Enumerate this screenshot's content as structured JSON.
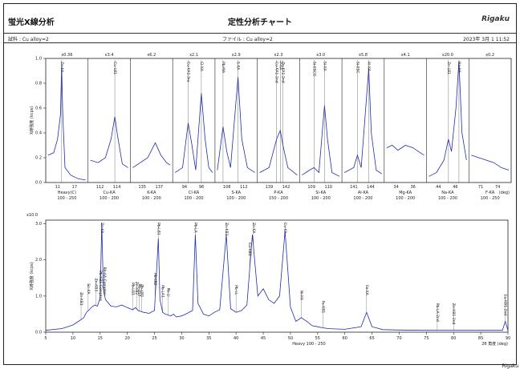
{
  "header": {
    "title_left": "蛍光X線分析",
    "title_center": "定性分析チャート",
    "brand": "Rigaku",
    "sample": "試料 : Cu alloy=2",
    "file": "ファイル : Cu alloy=2",
    "datetime": "2023年 3月 1 11:52"
  },
  "footer_stamp": "Rigaku",
  "colors": {
    "trace": "#1f2bb0",
    "frame": "#222222",
    "grid": "#555555"
  },
  "chart_data": [
    {
      "type": "line",
      "title": "",
      "ylabel": "X線強度 (kcps)",
      "ylim": [
        0,
        1.0
      ],
      "yticks": [
        0,
        0.2,
        0.4,
        0.6,
        0.8,
        1.0
      ],
      "ytick_labels": [
        "0.0",
        "0.2",
        "0.4",
        "0.6",
        "0.8",
        "1.0"
      ],
      "units_label": "(deg)",
      "panels": [
        {
          "scale": "x0.36",
          "ticks": [
            "11",
            "17"
          ],
          "axis": "Heavy(C)",
          "range": "100 - 250",
          "points": [
            [
              0,
              0.22
            ],
            [
              0.15,
              0.24
            ],
            [
              0.25,
              0.35
            ],
            [
              0.33,
              0.55
            ],
            [
              0.36,
              0.95
            ],
            [
              0.39,
              0.55
            ],
            [
              0.45,
              0.12
            ],
            [
              0.6,
              0.06
            ],
            [
              0.8,
              0.03
            ],
            [
              1,
              0.02
            ]
          ],
          "peaks": [
            {
              "pos": 0.36,
              "label": "Zn-KA"
            }
          ]
        },
        {
          "scale": "x3.4",
          "ticks": [
            "112",
            "114"
          ],
          "axis": "Cu-KA",
          "range": "100 - 200",
          "points": [
            [
              0,
              0.18
            ],
            [
              0.2,
              0.16
            ],
            [
              0.4,
              0.2
            ],
            [
              0.55,
              0.35
            ],
            [
              0.65,
              0.53
            ],
            [
              0.72,
              0.38
            ],
            [
              0.85,
              0.15
            ],
            [
              1,
              0.12
            ]
          ],
          "peaks": [
            {
              "pos": 0.65,
              "label": "Cu-LB1"
            }
          ]
        },
        {
          "scale": "x6.2",
          "ticks": [
            "135",
            "137"
          ],
          "axis": "K-KA",
          "range": "100 - 200",
          "points": [
            [
              0,
              0.12
            ],
            [
              0.2,
              0.16
            ],
            [
              0.4,
              0.2
            ],
            [
              0.6,
              0.32
            ],
            [
              0.75,
              0.22
            ],
            [
              0.9,
              0.16
            ],
            [
              1,
              0.14
            ]
          ],
          "peaks": []
        },
        {
          "scale": "x2.1",
          "ticks": [
            "94",
            "96"
          ],
          "axis": "Cl-KA",
          "range": "100 - 200",
          "points": [
            [
              0,
              0.08
            ],
            [
              0.2,
              0.12
            ],
            [
              0.35,
              0.48
            ],
            [
              0.45,
              0.3
            ],
            [
              0.55,
              0.1
            ],
            [
              0.7,
              0.72
            ],
            [
              0.8,
              0.35
            ],
            [
              0.9,
              0.12
            ],
            [
              1,
              0.08
            ]
          ],
          "peaks": [
            {
              "pos": 0.35,
              "label": "Cu-KA1-3ra"
            },
            {
              "pos": 0.7,
              "label": "Cl-KA"
            }
          ]
        },
        {
          "scale": "x2.9",
          "ticks": [
            "108",
            "112"
          ],
          "axis": "S-KA",
          "range": "100 - 200",
          "points": [
            [
              0,
              0.1
            ],
            [
              0.15,
              0.45
            ],
            [
              0.25,
              0.25
            ],
            [
              0.35,
              0.12
            ],
            [
              0.55,
              0.85
            ],
            [
              0.65,
              0.35
            ],
            [
              0.8,
              0.12
            ],
            [
              1,
              0.08
            ]
          ],
          "peaks": [
            {
              "pos": 0.15,
              "label": "Pb-MA"
            },
            {
              "pos": 0.55,
              "label": "S-KA"
            }
          ]
        },
        {
          "scale": "x2.3",
          "ticks": [
            "139",
            "142"
          ],
          "axis": "P-KA",
          "range": "150 - 200",
          "points": [
            [
              0,
              0.08
            ],
            [
              0.25,
              0.12
            ],
            [
              0.45,
              0.35
            ],
            [
              0.55,
              0.42
            ],
            [
              0.62,
              0.3
            ],
            [
              0.75,
              0.12
            ],
            [
              1,
              0.06
            ]
          ],
          "peaks": [
            {
              "pos": 0.45,
              "label": "Cu-KA1-2nd"
            },
            {
              "pos": 0.55,
              "label": "P-KA"
            },
            {
              "pos": 0.62,
              "label": "Zn-KA1-2nd"
            }
          ]
        },
        {
          "scale": "x3.0",
          "ticks": [
            "109",
            "110"
          ],
          "axis": "Si-KA",
          "range": "100 - 200",
          "points": [
            [
              0,
              0.06
            ],
            [
              0.2,
              0.1
            ],
            [
              0.32,
              0.12
            ],
            [
              0.45,
              0.08
            ],
            [
              0.6,
              0.62
            ],
            [
              0.68,
              0.35
            ],
            [
              0.8,
              0.08
            ],
            [
              1,
              0.05
            ]
          ],
          "peaks": [
            {
              "pos": 0.32,
              "label": "Si-ESCO"
            },
            {
              "pos": 0.6,
              "label": "Si-KA"
            }
          ]
        },
        {
          "scale": "x5.8",
          "ticks": [
            "141",
            "144"
          ],
          "axis": "Al-KA",
          "range": "100 - 200",
          "points": [
            [
              0,
              0.08
            ],
            [
              0.25,
              0.12
            ],
            [
              0.35,
              0.22
            ],
            [
              0.45,
              0.12
            ],
            [
              0.65,
              0.92
            ],
            [
              0.72,
              0.4
            ],
            [
              0.85,
              0.1
            ],
            [
              1,
              0.07
            ]
          ],
          "peaks": [
            {
              "pos": 0.35,
              "label": "Si-ESC"
            },
            {
              "pos": 0.65,
              "label": "Al-KA"
            }
          ]
        },
        {
          "scale": "x4.1",
          "ticks": [
            "34",
            "36"
          ],
          "axis": "Mg-KA",
          "range": "100 - 200",
          "points": [
            [
              0,
              0.28
            ],
            [
              0.15,
              0.3
            ],
            [
              0.3,
              0.26
            ],
            [
              0.5,
              0.3
            ],
            [
              0.7,
              0.28
            ],
            [
              0.85,
              0.25
            ],
            [
              1,
              0.22
            ]
          ],
          "peaks": []
        },
        {
          "scale": "x20.0",
          "ticks": [
            "44",
            "46"
          ],
          "axis": "Na-KA",
          "range": "100 - 200",
          "points": [
            [
              0,
              0.05
            ],
            [
              0.2,
              0.08
            ],
            [
              0.4,
              0.18
            ],
            [
              0.52,
              0.35
            ],
            [
              0.6,
              0.25
            ],
            [
              0.72,
              0.6
            ],
            [
              0.8,
              0.98
            ],
            [
              0.88,
              0.4
            ],
            [
              1,
              0.18
            ]
          ],
          "peaks": [
            {
              "pos": 0.52,
              "label": "Zn-LB1"
            },
            {
              "pos": 0.8,
              "label": "Na-KA"
            }
          ]
        },
        {
          "scale": "x0.2",
          "ticks": [
            "71",
            "74"
          ],
          "axis": "F-KA",
          "range": "100 - 250",
          "points": [
            [
              0,
              0.22
            ],
            [
              0.2,
              0.2
            ],
            [
              0.4,
              0.18
            ],
            [
              0.6,
              0.16
            ],
            [
              0.8,
              0.12
            ],
            [
              1,
              0.1
            ]
          ],
          "peaks": []
        }
      ]
    },
    {
      "type": "line",
      "title": "",
      "ylabel": "X線強度 (kcps)",
      "scale": "x10.0",
      "xlim": [
        5,
        90
      ],
      "ylim": [
        0,
        3.1
      ],
      "xticks": [
        5,
        10,
        15,
        20,
        25,
        30,
        35,
        40,
        45,
        50,
        55,
        60,
        65,
        70,
        75,
        80,
        85,
        90
      ],
      "yticks": [
        0,
        1.0,
        2.0,
        3.0
      ],
      "ytick_labels": [
        "0.0",
        "1.0",
        "2.0",
        "3.0"
      ],
      "xlabel": "Heavy 100 - 250",
      "xlabel_right": "2θ 角度 (deg)",
      "points": [
        [
          5,
          0.05
        ],
        [
          8,
          0.1
        ],
        [
          10,
          0.2
        ],
        [
          11,
          0.3
        ],
        [
          12,
          0.4
        ],
        [
          12.5,
          0.55
        ],
        [
          13,
          0.62
        ],
        [
          13.5,
          0.7
        ],
        [
          14,
          0.75
        ],
        [
          14.5,
          0.72
        ],
        [
          15,
          0.95
        ],
        [
          15.3,
          3.0
        ],
        [
          15.6,
          1.2
        ],
        [
          16,
          0.9
        ],
        [
          17,
          0.72
        ],
        [
          18,
          0.7
        ],
        [
          19,
          0.75
        ],
        [
          20,
          0.68
        ],
        [
          21,
          0.62
        ],
        [
          21.5,
          0.68
        ],
        [
          22,
          0.6
        ],
        [
          23,
          0.55
        ],
        [
          24,
          0.52
        ],
        [
          25,
          0.6
        ],
        [
          25.7,
          2.6
        ],
        [
          26,
          0.9
        ],
        [
          26.5,
          0.55
        ],
        [
          27,
          0.5
        ],
        [
          28,
          0.45
        ],
        [
          28.5,
          0.5
        ],
        [
          29,
          0.42
        ],
        [
          30,
          0.45
        ],
        [
          31,
          0.52
        ],
        [
          32,
          0.6
        ],
        [
          32.5,
          2.7
        ],
        [
          33,
          0.8
        ],
        [
          34,
          0.5
        ],
        [
          35,
          0.45
        ],
        [
          36,
          0.55
        ],
        [
          37,
          0.62
        ],
        [
          38.2,
          2.7
        ],
        [
          39,
          0.65
        ],
        [
          40,
          0.55
        ],
        [
          41,
          0.6
        ],
        [
          42,
          0.75
        ],
        [
          43,
          2.7
        ],
        [
          44,
          1.0
        ],
        [
          45,
          1.2
        ],
        [
          46,
          0.9
        ],
        [
          47,
          0.8
        ],
        [
          48,
          1.0
        ],
        [
          49,
          2.8
        ],
        [
          50,
          0.7
        ],
        [
          51,
          0.3
        ],
        [
          52,
          0.4
        ],
        [
          53,
          0.3
        ],
        [
          54,
          0.18
        ],
        [
          55,
          0.15
        ],
        [
          56,
          0.12
        ],
        [
          57,
          0.1
        ],
        [
          58,
          0.09
        ],
        [
          60,
          0.08
        ],
        [
          63,
          0.15
        ],
        [
          64,
          0.55
        ],
        [
          65,
          0.15
        ],
        [
          67,
          0.07
        ],
        [
          70,
          0.06
        ],
        [
          75,
          0.05
        ],
        [
          80,
          0.05
        ],
        [
          85,
          0.05
        ],
        [
          89,
          0.05
        ],
        [
          89.5,
          0.3
        ],
        [
          90,
          0.05
        ]
      ],
      "peaks": [
        {
          "x": 11.5,
          "label": "Zn-KB1"
        },
        {
          "x": 12.8,
          "label": "Sn-KA"
        },
        {
          "x": 14.2,
          "label": "Zn-KB3"
        },
        {
          "x": 15.0,
          "label": "Pb-KB1-Compton"
        },
        {
          "x": 15.3,
          "label": "Zn-KA"
        },
        {
          "x": 15.8,
          "label": "Rh-KA-Compton"
        },
        {
          "x": 21.0,
          "label": "Pb-LG1"
        },
        {
          "x": 21.7,
          "label": "Zn-KB2"
        },
        {
          "x": 22.2,
          "label": "Pb-LG3"
        },
        {
          "x": 22.6,
          "label": "Pb-LB3"
        },
        {
          "x": 25.7,
          "label": "Pb-LB1"
        },
        {
          "x": 25.1,
          "label": "Pb-LB2"
        },
        {
          "x": 26.5,
          "label": "Pb-LA1"
        },
        {
          "x": 27.5,
          "label": "Pb-Ll"
        },
        {
          "x": 32.5,
          "label": "Pb-LA"
        },
        {
          "x": 38.2,
          "label": "Zn-KB1"
        },
        {
          "x": 40.0,
          "label": "Pb-LL"
        },
        {
          "x": 42.5,
          "label": "Cu-KB1"
        },
        {
          "x": 43.2,
          "label": "Zn-KA"
        },
        {
          "x": 49.0,
          "label": "Cu-KA"
        },
        {
          "x": 52.0,
          "label": "Ni-KA"
        },
        {
          "x": 56.0,
          "label": "Fe-KB1"
        },
        {
          "x": 64.0,
          "label": "Fe-KA"
        },
        {
          "x": 77.0,
          "label": "Pb-LA-2nd"
        },
        {
          "x": 80.0,
          "label": "Zn-KB1-2nd"
        },
        {
          "x": 89.5,
          "label": "Cu-KB1-2nd"
        }
      ]
    }
  ]
}
